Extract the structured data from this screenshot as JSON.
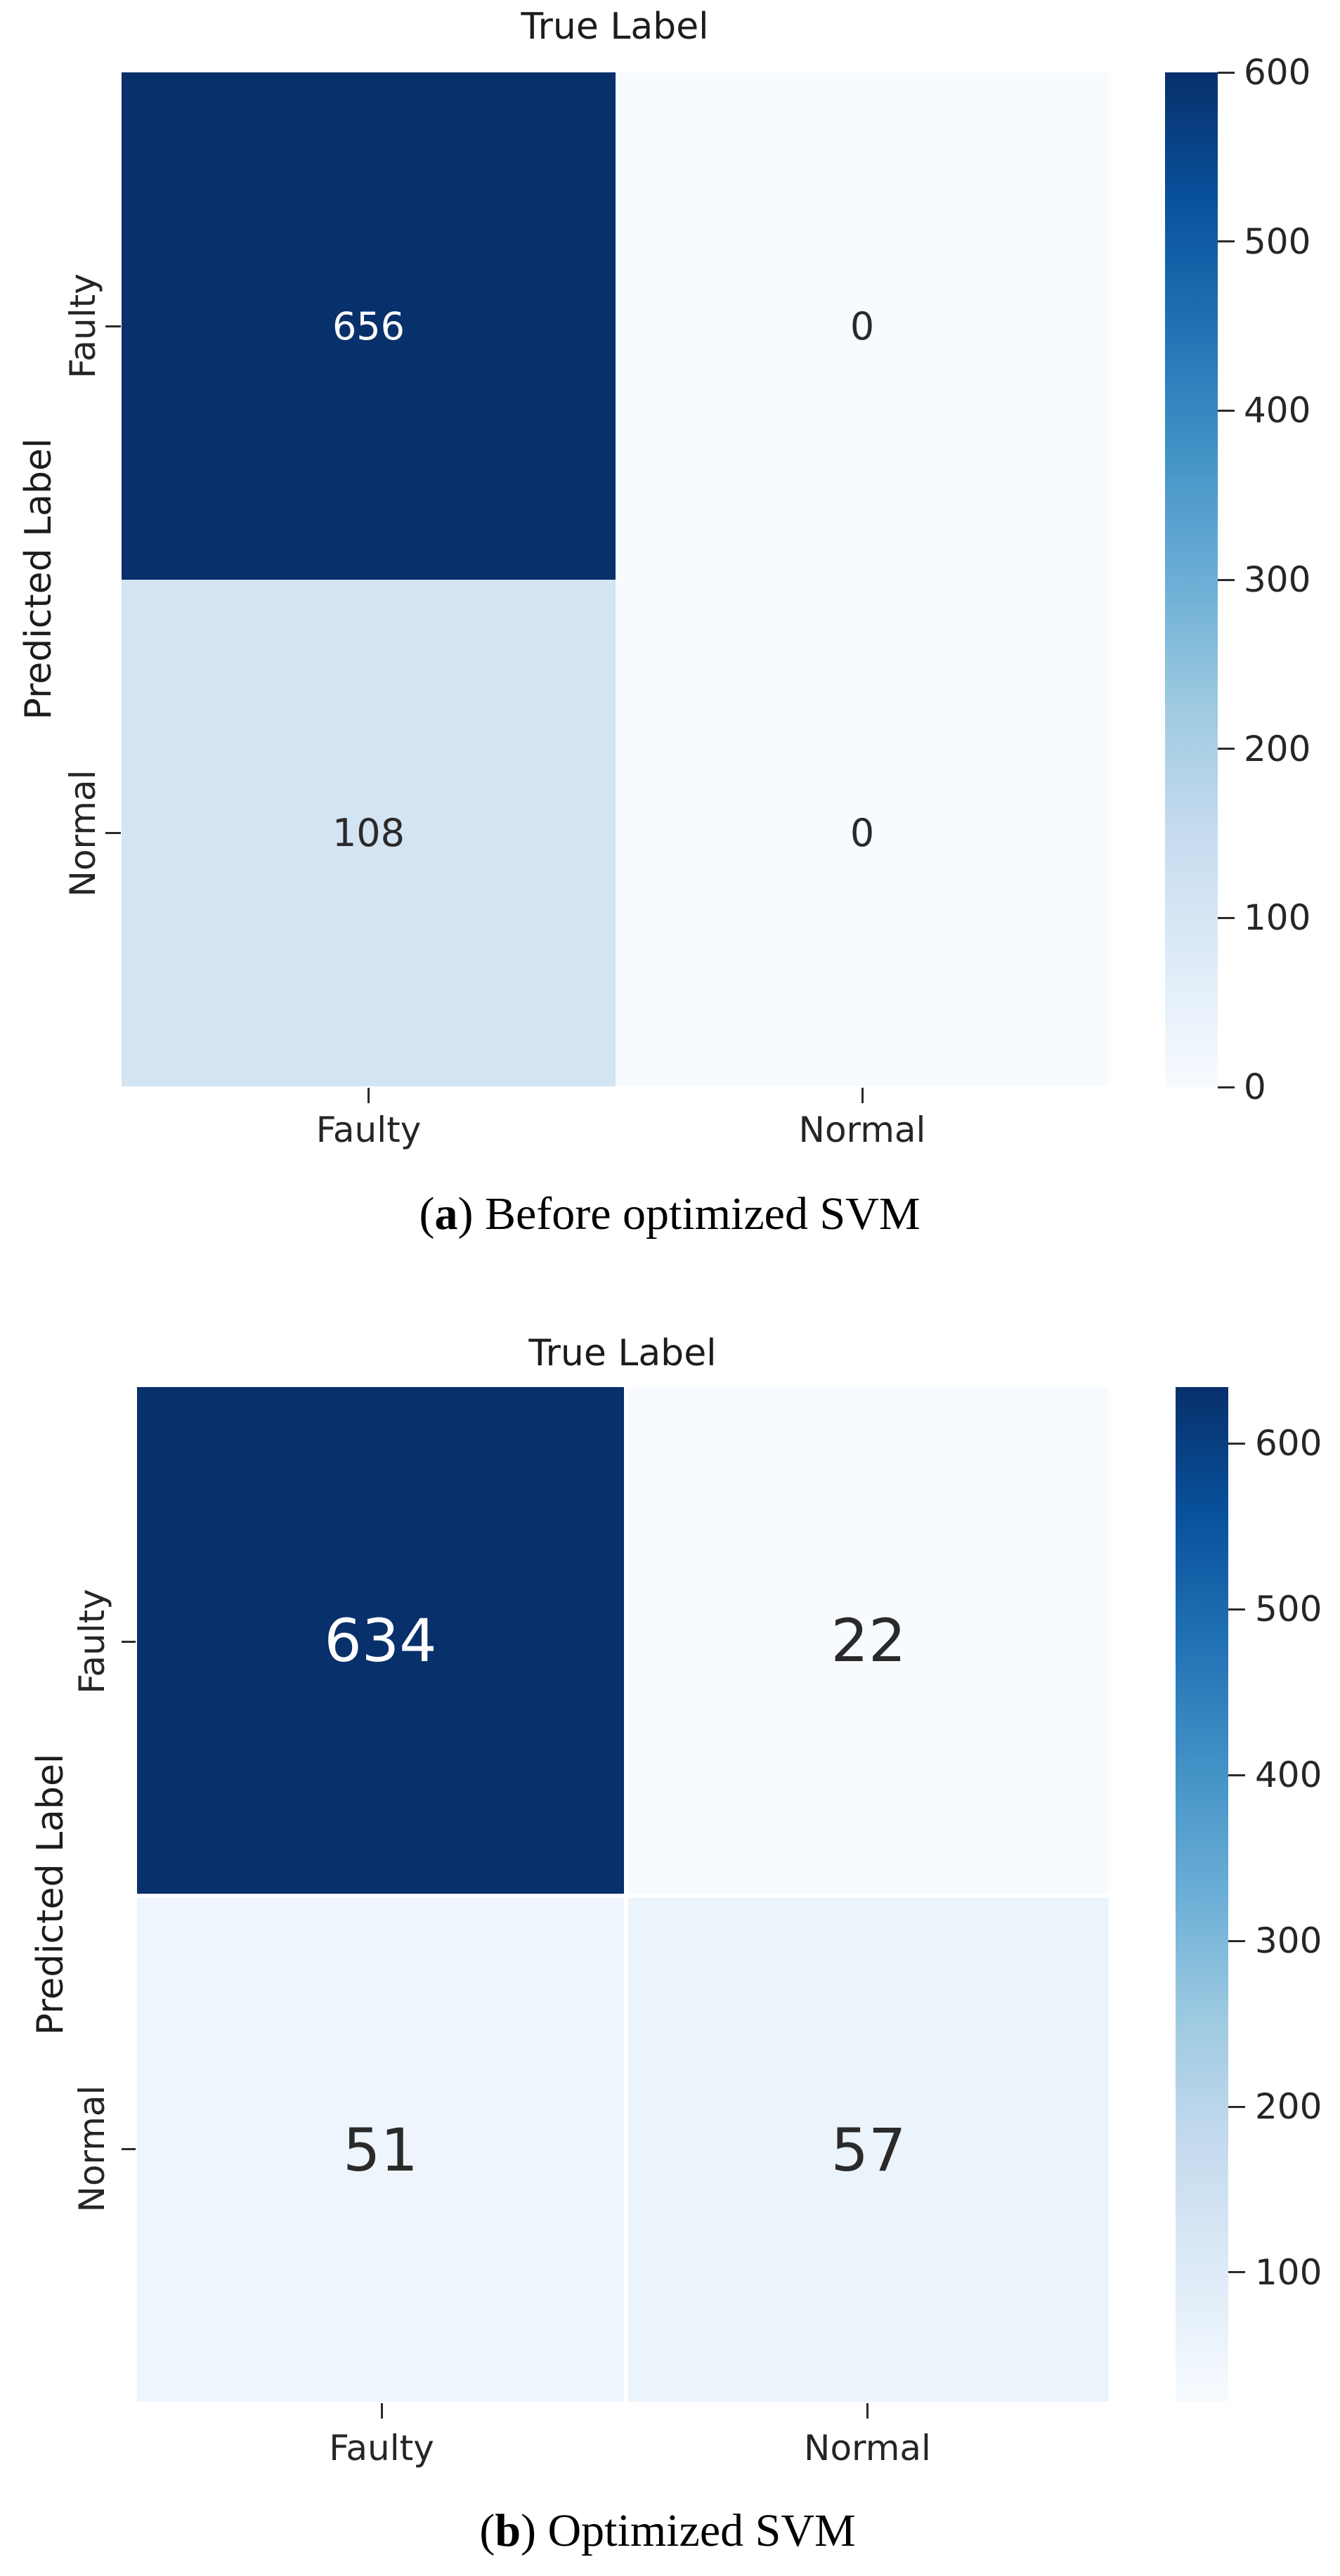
{
  "colors": {
    "background": "#ffffff",
    "blues_cmap": [
      "#f7fbff",
      "#deebf7",
      "#c6dbef",
      "#9ecae1",
      "#6baed6",
      "#4292c6",
      "#2171b5",
      "#08519c",
      "#08306b"
    ],
    "annot_on_dark": "#ffffff",
    "annot_on_light": "#2a2a2a",
    "tick_text": "#262626"
  },
  "chart_data": [
    {
      "id": "a",
      "type": "heatmap",
      "title": "True Label",
      "ylabel": "Predicted Label",
      "x_categories": [
        "Faulty",
        "Normal"
      ],
      "y_categories": [
        "Faulty",
        "Normal"
      ],
      "values": [
        [
          656,
          0
        ],
        [
          108,
          0
        ]
      ],
      "vmin": 0,
      "vmax": 600,
      "colorbar_ticks": [
        600,
        500,
        400,
        300,
        200,
        100,
        0
      ],
      "legend_position": "right",
      "caption": {
        "open": "(",
        "label": "a",
        "close_text": ") Before optimized SVM"
      }
    },
    {
      "id": "b",
      "type": "heatmap",
      "title": "True Label",
      "ylabel": "Predicted Label",
      "x_categories": [
        "Faulty",
        "Normal"
      ],
      "y_categories": [
        "Faulty",
        "Normal"
      ],
      "values": [
        [
          634,
          22
        ],
        [
          51,
          57
        ]
      ],
      "vmin": 22,
      "vmax": 634,
      "colorbar_ticks": [
        600,
        500,
        400,
        300,
        200,
        100
      ],
      "legend_position": "right",
      "caption": {
        "open": "(",
        "label": "b",
        "close_text": ") Optimized SVM"
      }
    }
  ]
}
